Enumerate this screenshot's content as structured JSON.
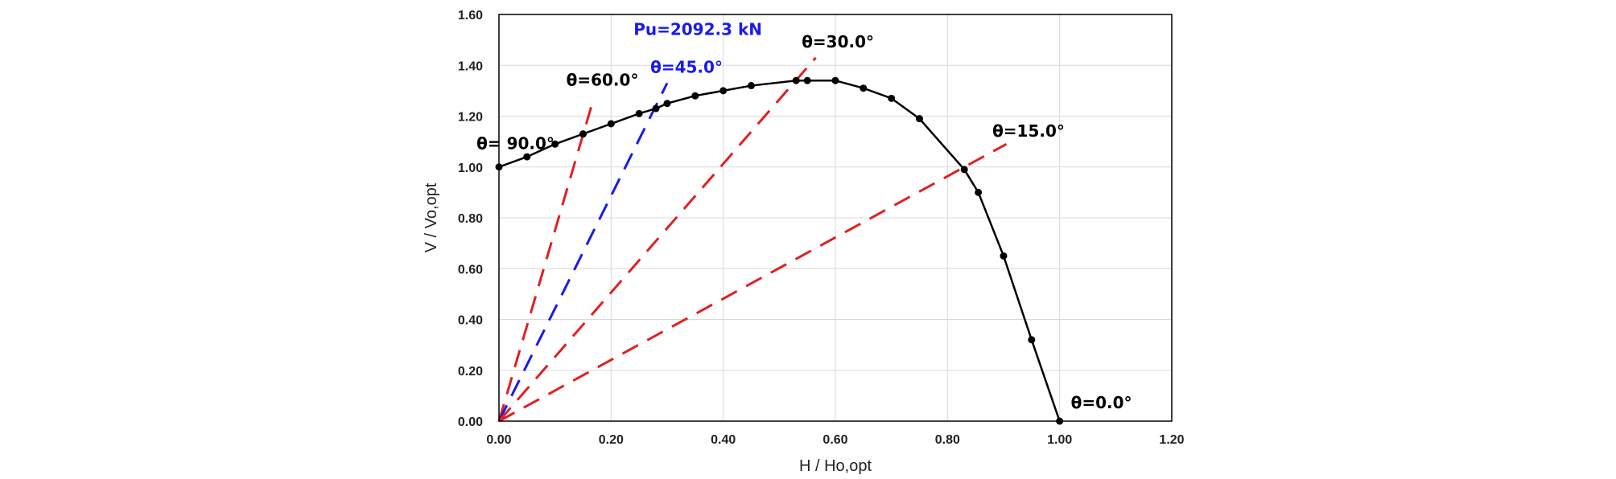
{
  "chart_data": {
    "type": "line",
    "xlabel": "H / Ho,opt",
    "ylabel": "V / Vo,opt",
    "xlim": [
      0,
      1.2
    ],
    "ylim": [
      0,
      1.6
    ],
    "x_ticks": [
      "0.00",
      "0.20",
      "0.40",
      "0.60",
      "0.80",
      "1.00",
      "1.20"
    ],
    "y_ticks": [
      "0.00",
      "0.20",
      "0.40",
      "0.60",
      "0.80",
      "1.00",
      "1.20",
      "1.40",
      "1.60"
    ],
    "grid": true,
    "curve": {
      "color": "#000000",
      "markers": true,
      "points": [
        [
          0.0,
          1.0
        ],
        [
          0.05,
          1.04
        ],
        [
          0.1,
          1.09
        ],
        [
          0.15,
          1.13
        ],
        [
          0.2,
          1.17
        ],
        [
          0.25,
          1.21
        ],
        [
          0.28,
          1.23
        ],
        [
          0.3,
          1.25
        ],
        [
          0.35,
          1.28
        ],
        [
          0.4,
          1.3
        ],
        [
          0.45,
          1.32
        ],
        [
          0.53,
          1.34
        ],
        [
          0.55,
          1.34
        ],
        [
          0.6,
          1.34
        ],
        [
          0.65,
          1.31
        ],
        [
          0.7,
          1.27
        ],
        [
          0.75,
          1.19
        ],
        [
          0.83,
          0.99
        ],
        [
          0.855,
          0.9
        ],
        [
          0.9,
          0.65
        ],
        [
          0.95,
          0.32
        ],
        [
          1.0,
          0.0
        ]
      ]
    },
    "load_lines": [
      {
        "label": "θ=60.0°",
        "color": "#e02020",
        "end": [
          0.165,
          1.24
        ],
        "label_at": [
          0.12,
          1.32
        ]
      },
      {
        "label": "θ=45.0°",
        "color": "#1a1aee",
        "end": [
          0.3,
          1.33
        ],
        "label_at": [
          0.27,
          1.37
        ]
      },
      {
        "label": "θ=30.0°",
        "color": "#e02020",
        "end": [
          0.565,
          1.43
        ],
        "label_at": [
          0.54,
          1.47
        ]
      },
      {
        "label": "θ=15.0°",
        "color": "#e02020",
        "end": [
          0.905,
          1.09
        ],
        "label_at": [
          0.88,
          1.12
        ]
      }
    ],
    "annotations": [
      {
        "text": "Pu=2092.3  kN",
        "color": "#1a1aee",
        "at": [
          0.24,
          1.52
        ]
      },
      {
        "text": "θ= 90.0°",
        "color": "#000000",
        "at": [
          -0.04,
          1.07
        ]
      },
      {
        "text": "θ=0.0°",
        "color": "#000000",
        "at": [
          1.02,
          0.05
        ]
      }
    ]
  }
}
